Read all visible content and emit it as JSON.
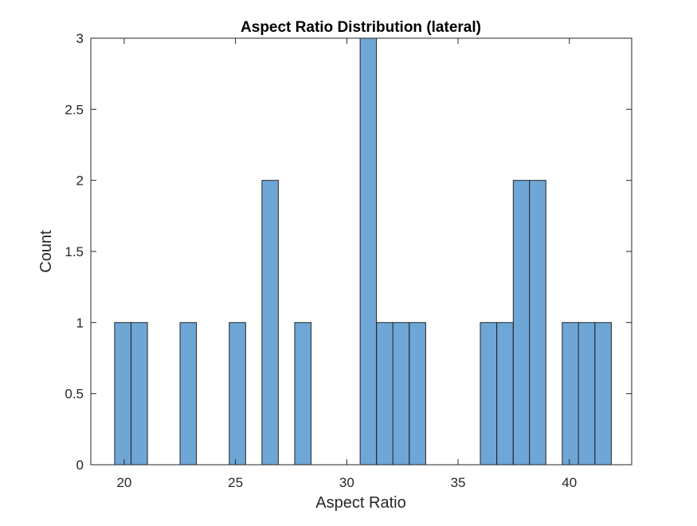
{
  "chart_data": {
    "type": "bar",
    "title": "Aspect Ratio Distribution (lateral)",
    "xlabel": "Aspect Ratio",
    "ylabel": "Count",
    "xlim": [
      18.5,
      42.8
    ],
    "ylim": [
      0,
      3
    ],
    "xticks": [
      20,
      25,
      30,
      35,
      40
    ],
    "yticks": [
      0,
      0.5,
      1,
      1.5,
      2,
      2.5,
      3
    ],
    "xtick_labels": [
      "20",
      "25",
      "30",
      "35",
      "40"
    ],
    "ytick_labels": [
      "0",
      "0.5",
      "1",
      "1.5",
      "2",
      "2.5",
      "3"
    ],
    "bin_width": 0.735,
    "bin_starts": [
      19.57,
      20.31,
      22.51,
      24.72,
      26.19,
      27.66,
      30.6,
      31.34,
      32.07,
      32.81,
      36.0,
      36.74,
      37.48,
      38.21,
      39.68,
      40.41,
      41.15
    ],
    "values": [
      1,
      1,
      1,
      1,
      2,
      1,
      3,
      1,
      1,
      1,
      1,
      1,
      2,
      2,
      1,
      1,
      1
    ],
    "grid": false,
    "box": true,
    "bar_color": "#6ea6d6",
    "edge_color": "#262626"
  }
}
